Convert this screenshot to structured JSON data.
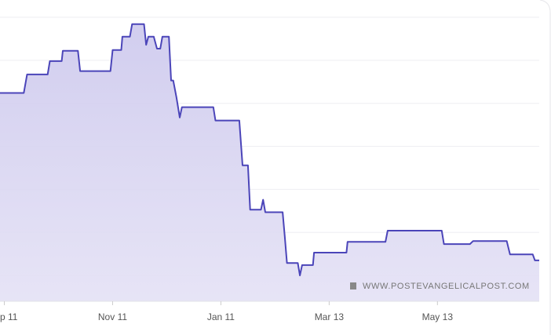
{
  "chart_data": {
    "type": "line",
    "xticks": [
      {
        "value": 0,
        "label": "p 11"
      },
      {
        "value": 1,
        "label": "Nov 11"
      },
      {
        "value": 2,
        "label": "Jan 11"
      },
      {
        "value": 3,
        "label": "Mar 13"
      },
      {
        "value": 4,
        "label": "May 13"
      }
    ],
    "xlim": [
      -0.04,
      4.94
    ],
    "ylim": [
      0.4,
      7
    ],
    "yticks": [
      1,
      2,
      3,
      4,
      5,
      6,
      7
    ],
    "grid": true,
    "annotation": "WWW.POSTEVANGELICALPOST.COM",
    "series": [
      {
        "color": "#4b45b9",
        "fill": "#d8d5f0",
        "x": [
          -0.04,
          0.18,
          0.21,
          0.4,
          0.42,
          0.53,
          0.54,
          0.68,
          0.7,
          0.98,
          1.0,
          1.08,
          1.09,
          1.16,
          1.18,
          1.29,
          1.31,
          1.33,
          1.38,
          1.41,
          1.44,
          1.46,
          1.52,
          1.54,
          1.56,
          1.59,
          1.62,
          1.64,
          1.93,
          1.95,
          2.17,
          2.2,
          2.25,
          2.27,
          2.37,
          2.39,
          2.41,
          2.57,
          2.59,
          2.61,
          2.71,
          2.73,
          2.75,
          2.85,
          2.86,
          3.16,
          3.17,
          3.52,
          3.54,
          4.04,
          4.06,
          4.3,
          4.33,
          4.64,
          4.67,
          4.88,
          4.9,
          4.94
        ],
        "values": [
          5.24,
          5.24,
          5.67,
          5.67,
          5.98,
          5.98,
          6.22,
          6.22,
          5.75,
          5.75,
          6.24,
          6.24,
          6.55,
          6.55,
          6.84,
          6.84,
          6.36,
          6.55,
          6.55,
          6.27,
          6.27,
          6.55,
          6.55,
          5.53,
          5.53,
          5.13,
          4.67,
          4.91,
          4.91,
          4.6,
          4.6,
          3.56,
          3.56,
          2.53,
          2.53,
          2.76,
          2.47,
          2.47,
          1.91,
          1.29,
          1.29,
          1.0,
          1.24,
          1.24,
          1.53,
          1.53,
          1.78,
          1.78,
          2.04,
          2.04,
          1.73,
          1.73,
          1.8,
          1.8,
          1.49,
          1.49,
          1.35,
          1.35
        ]
      }
    ]
  }
}
